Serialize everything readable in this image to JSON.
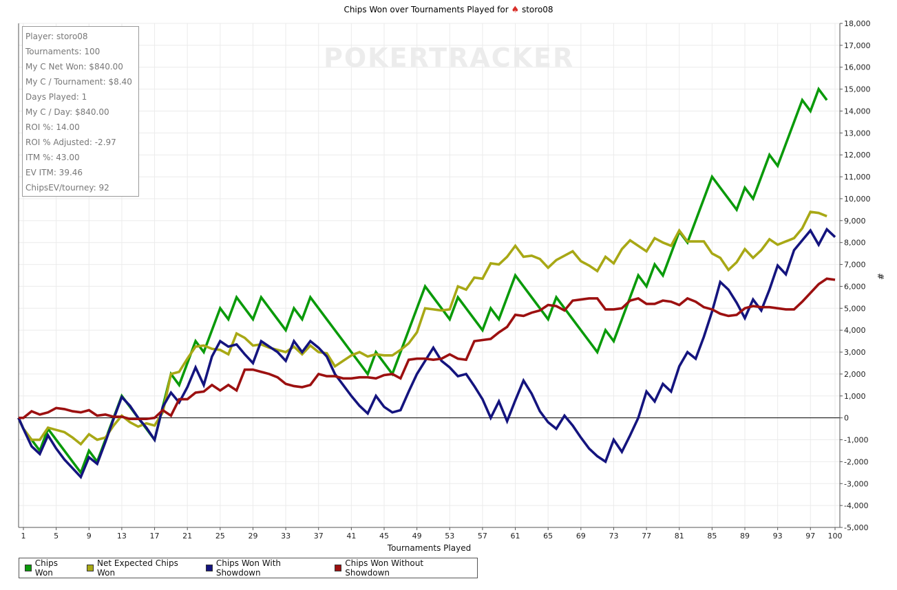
{
  "title": {
    "prefix": "Chips Won over Tournaments Played for",
    "icon": "poker-spade-chip-icon",
    "player": "storo08"
  },
  "watermark": "POKERTRACKER",
  "stats": [
    "Player: storo08",
    "Tournaments: 100",
    "My C Net Won: $840.00",
    "My C / Tournament: $8.40",
    "Days Played: 1",
    "My C / Day: $840.00",
    "ROI %: 14.00",
    "ROI % Adjusted: -2.97",
    "ITM %: 43.00",
    "EV ITM: 39.46",
    "ChipsEV/tourney: 92"
  ],
  "chart_data": {
    "type": "line",
    "xlabel": "Tournaments Played",
    "ylabel": "#",
    "xlim": [
      0,
      100
    ],
    "ylim": [
      -5000,
      18000
    ],
    "x_ticks": [
      1,
      5,
      9,
      13,
      17,
      21,
      25,
      29,
      33,
      37,
      41,
      45,
      49,
      53,
      57,
      61,
      65,
      69,
      73,
      77,
      81,
      85,
      89,
      93,
      97,
      100
    ],
    "y_ticks": [
      -5000,
      -4000,
      -3000,
      -2000,
      -1000,
      0,
      1000,
      2000,
      3000,
      4000,
      5000,
      6000,
      7000,
      8000,
      9000,
      10000,
      11000,
      12000,
      13000,
      14000,
      15000,
      16000,
      17000,
      18000
    ],
    "y_tick_labels": [
      "-5,000",
      "-4,000",
      "-3,000",
      "-2,000",
      "-1,000",
      "0",
      "1,000",
      "2,000",
      "3,000",
      "4,000",
      "5,000",
      "6,000",
      "7,000",
      "8,000",
      "9,000",
      "10,000",
      "11,000",
      "12,000",
      "13,000",
      "14,000",
      "15,000",
      "16,000",
      "17,000",
      "18,000"
    ],
    "grid": true,
    "legend_position": "bottom-left",
    "series": [
      {
        "name": "Chips Won",
        "color": "#0a9a0a",
        "values": [
          0,
          -500,
          -1000,
          -1500,
          -500,
          -1000,
          -1500,
          -2000,
          -2500,
          -1500,
          -2000,
          -1000,
          0,
          1000,
          500,
          0,
          -500,
          -1000,
          500,
          2000,
          1500,
          2500,
          3500,
          3000,
          4000,
          5000,
          4500,
          5500,
          5000,
          4500,
          5500,
          5000,
          4500,
          4000,
          5000,
          4500,
          5500,
          5000,
          4500,
          4000,
          3500,
          3000,
          2500,
          2000,
          3000,
          2500,
          2000,
          3000,
          4000,
          5000,
          6000,
          5500,
          5000,
          4500,
          5500,
          5000,
          4500,
          4000,
          5000,
          4500,
          5500,
          6500,
          6000,
          5500,
          5000,
          4500,
          5500,
          5000,
          4500,
          4000,
          3500,
          3000,
          4000,
          3500,
          4500,
          5500,
          6500,
          6000,
          7000,
          6500,
          7500,
          8500,
          8000,
          9000,
          10000,
          11000,
          10500,
          10000,
          9500,
          10500,
          10000,
          11000,
          12000,
          11500,
          12500,
          13500,
          14500,
          14000,
          15000,
          14500
        ]
      },
      {
        "name": "Net Expected Chips Won",
        "color": "#a8a815",
        "values": [
          0,
          -500,
          -1000,
          -1000,
          -450,
          -550,
          -650,
          -900,
          -1200,
          -750,
          -1000,
          -900,
          -350,
          100,
          -200,
          -400,
          -250,
          -350,
          250,
          2000,
          2100,
          2700,
          3250,
          3300,
          3150,
          3100,
          2900,
          3850,
          3650,
          3300,
          3350,
          3200,
          3100,
          3000,
          3250,
          2900,
          3300,
          3000,
          2950,
          2350,
          2600,
          2850,
          3000,
          2800,
          2900,
          2850,
          2850,
          3100,
          3400,
          3900,
          5000,
          4950,
          4900,
          4950,
          6000,
          5850,
          6400,
          6350,
          7050,
          7000,
          7350,
          7850,
          7350,
          7400,
          7250,
          6850,
          7200,
          7400,
          7600,
          7150,
          6950,
          6700,
          7350,
          7050,
          7700,
          8100,
          7850,
          7600,
          8200,
          8000,
          7850,
          8550,
          8050,
          8050,
          8050,
          7500,
          7300,
          6750,
          7100,
          7700,
          7300,
          7650,
          8150,
          7900,
          8050,
          8200,
          8650,
          9400,
          9350,
          9200
        ]
      },
      {
        "name": "Chips Won With Showdown",
        "color": "#14147e",
        "values": [
          0,
          -500,
          -1300,
          -1650,
          -800,
          -1400,
          -1900,
          -2300,
          -2700,
          -1800,
          -2100,
          -1100,
          -50,
          950,
          550,
          0,
          -450,
          -1000,
          500,
          1150,
          700,
          1400,
          2300,
          1500,
          2800,
          3500,
          3250,
          3350,
          2900,
          2500,
          3500,
          3250,
          3000,
          2600,
          3500,
          3000,
          3500,
          3200,
          2800,
          2000,
          1500,
          1000,
          550,
          200,
          1000,
          500,
          250,
          350,
          1200,
          2000,
          2600,
          3200,
          2600,
          2300,
          1900,
          2000,
          1450,
          850,
          0,
          750,
          -150,
          800,
          1700,
          1100,
          300,
          -200,
          -500,
          100,
          -350,
          -900,
          -1400,
          -1750,
          -2000,
          -1000,
          -1550,
          -800,
          0,
          1200,
          750,
          1550,
          1200,
          2350,
          3000,
          2700,
          3700,
          4850,
          6200,
          5850,
          5250,
          4550,
          5400,
          4900,
          5850,
          6950,
          6550,
          7650,
          8100,
          8550,
          7900,
          8600,
          8250
        ]
      },
      {
        "name": "Chips Won Without Showdown",
        "color": "#9c1010",
        "values": [
          0,
          0,
          300,
          150,
          250,
          450,
          400,
          300,
          250,
          350,
          100,
          150,
          50,
          50,
          -50,
          -50,
          -50,
          0,
          350,
          100,
          850,
          850,
          1150,
          1200,
          1500,
          1250,
          1500,
          1250,
          2200,
          2200,
          2100,
          2000,
          1850,
          1550,
          1450,
          1400,
          1500,
          2000,
          1900,
          1900,
          1800,
          1800,
          1850,
          1850,
          1800,
          1950,
          2000,
          1800,
          2650,
          2700,
          2700,
          2650,
          2700,
          2900,
          2700,
          2650,
          3500,
          3550,
          3600,
          3900,
          4150,
          4700,
          4650,
          4800,
          4900,
          5150,
          5100,
          4900,
          5350,
          5400,
          5450,
          5450,
          4950,
          4950,
          5000,
          5350,
          5450,
          5200,
          5200,
          5350,
          5300,
          5150,
          5450,
          5300,
          5050,
          4950,
          4750,
          4650,
          4700,
          5000,
          5100,
          5050,
          5050,
          5000,
          4950,
          4950,
          5300,
          5700,
          6100,
          6350,
          6300
        ]
      }
    ]
  }
}
